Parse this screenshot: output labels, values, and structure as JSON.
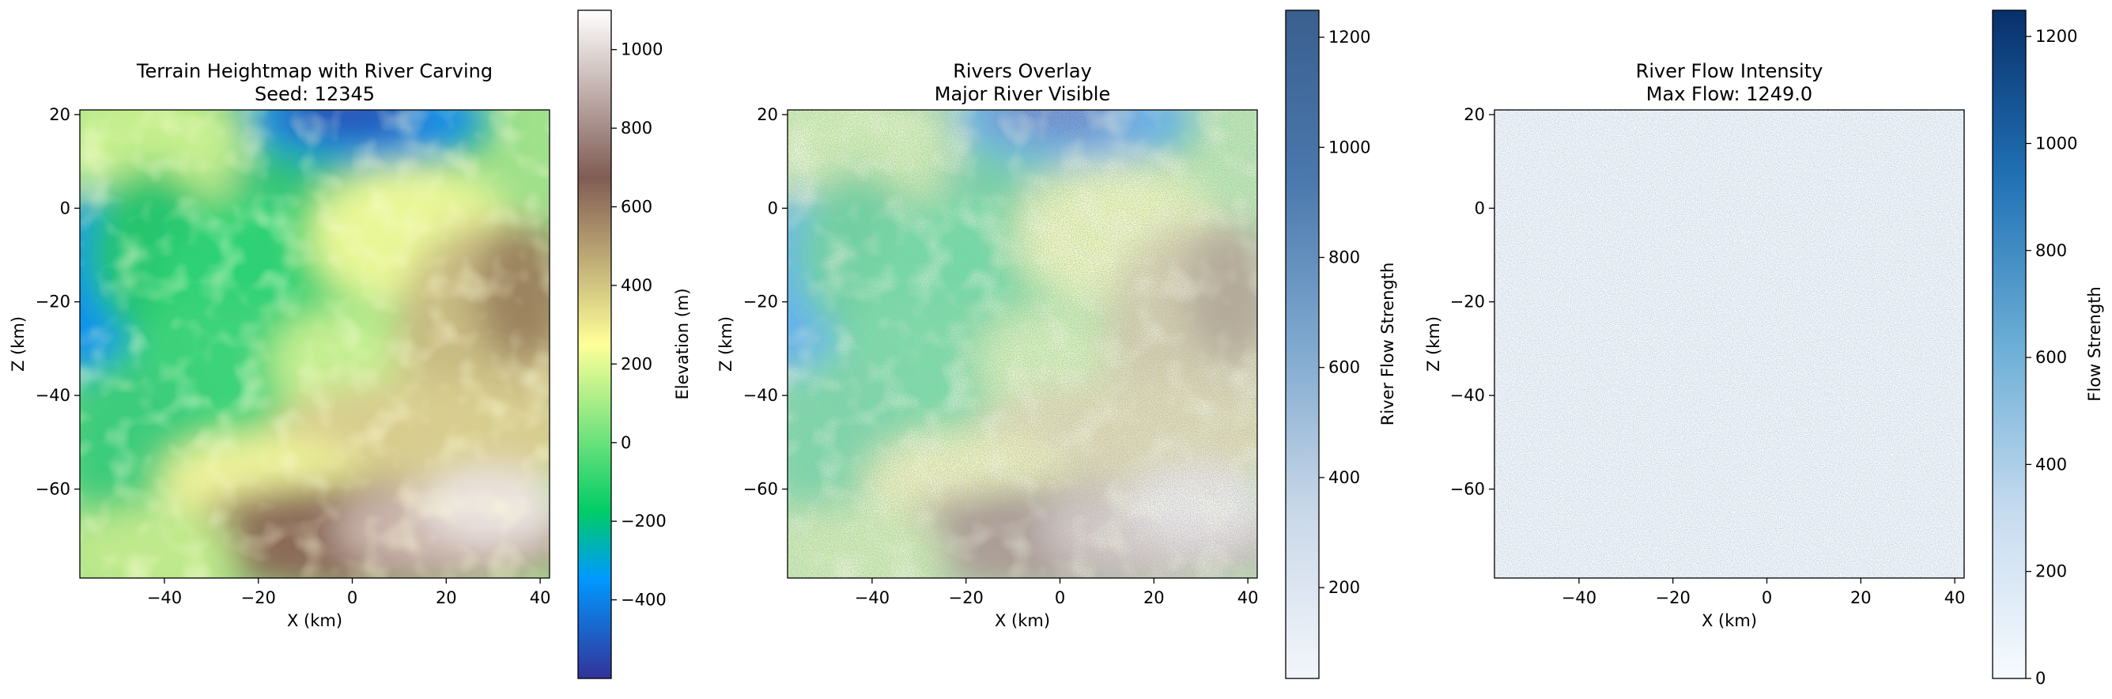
{
  "chart_data": [
    {
      "type": "heatmap",
      "title": "Terrain Heightmap with River Carving",
      "subtitle": "Seed: 12345",
      "xlabel": "X (km)",
      "ylabel": "Z (km)",
      "xlim": [
        -58,
        42
      ],
      "ylim": [
        -79,
        21
      ],
      "xticks": [
        -40,
        -20,
        0,
        20,
        40
      ],
      "yticks": [
        20,
        0,
        -20,
        -40,
        -60
      ],
      "colormap": "terrain",
      "colorbar": {
        "label": "Elevation (m)",
        "range": [
          -600,
          1100
        ],
        "ticks": [
          1000,
          800,
          600,
          400,
          200,
          0,
          -200,
          -400
        ]
      },
      "grid": false
    },
    {
      "type": "heatmap",
      "title": "Rivers Overlay",
      "subtitle": "Major River Visible",
      "xlabel": "X (km)",
      "ylabel": "Z (km)",
      "xlim": [
        -58,
        42
      ],
      "ylim": [
        -79,
        21
      ],
      "xticks": [
        -40,
        -20,
        0,
        20,
        40
      ],
      "yticks": [
        20,
        0,
        -20,
        -40,
        -60
      ],
      "colormap": "terrain + Blues overlay",
      "colorbar": {
        "label": "River Flow Strength",
        "range": [
          35,
          1249
        ],
        "ticks": [
          1200,
          1000,
          800,
          600,
          400,
          200
        ]
      },
      "grid": false
    },
    {
      "type": "heatmap",
      "title": "River Flow Intensity",
      "subtitle": "Max Flow: 1249.0",
      "xlabel": "X (km)",
      "ylabel": "Z (km)",
      "xlim": [
        -58,
        42
      ],
      "ylim": [
        -79,
        21
      ],
      "xticks": [
        -40,
        -20,
        0,
        20,
        40
      ],
      "yticks": [
        20,
        0,
        -20,
        -40,
        -60
      ],
      "colormap": "Blues",
      "colorbar": {
        "label": "Flow Strength",
        "range": [
          0,
          1249
        ],
        "ticks": [
          1200,
          1000,
          800,
          600,
          400,
          200,
          0
        ]
      },
      "grid": false
    }
  ],
  "colors": {
    "terrain_stops": [
      "#333399",
      "#0099ff",
      "#00cc66",
      "#ffff99",
      "#805c54",
      "#ffffff"
    ],
    "blues_stops": [
      "#f7fbff",
      "#c6dbef",
      "#6baed6",
      "#2171b5",
      "#08306b"
    ]
  }
}
